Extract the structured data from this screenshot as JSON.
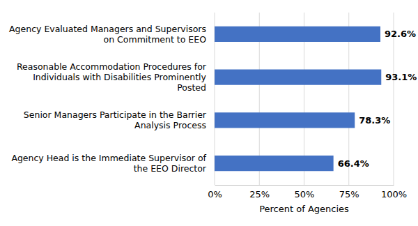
{
  "chart_data": {
    "type": "bar",
    "orientation": "horizontal",
    "categories": [
      "Agency Evaluated Managers and Supervisors on Commitment to EEO",
      "Reasonable Accommodation Procedures for Individuals with Disabilities Prominently Posted",
      "Senior Managers Participate in the Barrier Analysis Process",
      "Agency Head is the Immediate Supervisor of the EEO Director"
    ],
    "values": [
      92.6,
      93.1,
      78.3,
      66.4
    ],
    "value_labels": [
      "92.6%",
      "93.1%",
      "78.3%",
      "66.4%"
    ],
    "color": "#4472c4",
    "xlim": [
      0,
      100
    ],
    "xticks": [
      {
        "value": 0,
        "label": "0%"
      },
      {
        "value": 25,
        "label": "25%"
      },
      {
        "value": 50,
        "label": "50%"
      },
      {
        "value": 75,
        "label": "75%"
      },
      {
        "value": 100,
        "label": "100%"
      }
    ],
    "x_label": "Percent of Agencies",
    "grid": true,
    "data_labels": true
  }
}
